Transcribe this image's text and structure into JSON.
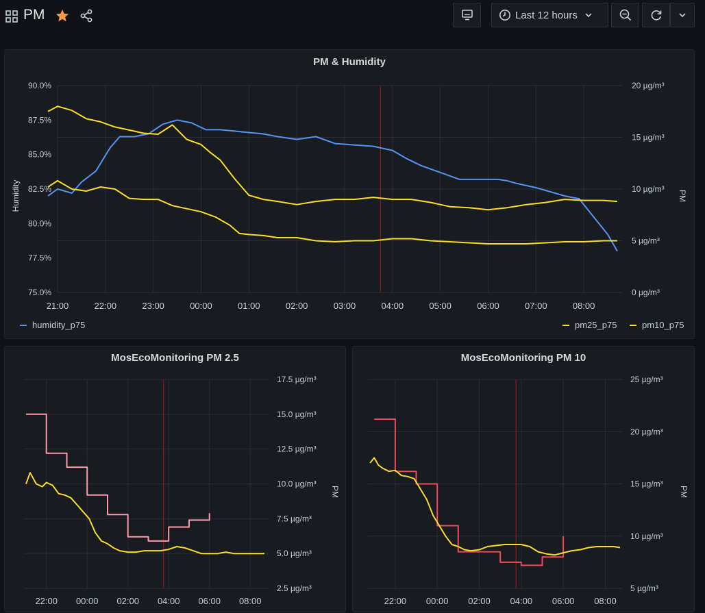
{
  "header": {
    "title": "PM",
    "time_range": "Last 12 hours",
    "icons": {
      "apps": "apps-icon",
      "star": "star-icon",
      "share": "share-icon",
      "tv": "tv-icon",
      "clock": "clock-icon",
      "chevron": "chevron-down-icon",
      "zoom": "zoom-out-icon",
      "refresh": "refresh-icon"
    },
    "star_color": "#f2994a"
  },
  "colors": {
    "humidity": "#5794f2",
    "pm_yellow": "#fade2a",
    "pm_pink": "#ff9aa8",
    "pm_red": "#f2495c",
    "now_marker": "#8b1a1a",
    "grid": "#2a2d33",
    "tick_text": "#c7d0d9"
  },
  "panels": [
    {
      "title": "PM & Humidity",
      "chart_data": {
        "type": "line",
        "x_ticks": [
          "21:00",
          "22:00",
          "23:00",
          "00:00",
          "01:00",
          "02:00",
          "03:00",
          "04:00",
          "05:00",
          "06:00",
          "07:00",
          "08:00"
        ],
        "x_range": [
          0,
          11.8
        ],
        "ylabel_left": "Humidity",
        "ylabel_right": "PM",
        "y_left_ticks": [
          "75.0%",
          "77.5%",
          "80.0%",
          "82.5%",
          "85.0%",
          "87.5%",
          "90.0%"
        ],
        "y_left_range": [
          75,
          90
        ],
        "y_right_ticks": [
          "0 µg/m³",
          "5 µg/m³",
          "10 µg/m³",
          "15 µg/m³",
          "20 µg/m³"
        ],
        "y_right_range": [
          0,
          20
        ],
        "now_marker_x": 6.75,
        "grid": true,
        "legend_placement": "bottom",
        "series": [
          {
            "name": "humidity_p75",
            "axis": "left",
            "color": "#5794f2",
            "x": [
              -0.2,
              0,
              0.3,
              0.5,
              0.8,
              1.1,
              1.3,
              1.6,
              1.9,
              2.2,
              2.5,
              2.8,
              3.1,
              3.4,
              3.7,
              4.0,
              4.3,
              4.6,
              5.0,
              5.4,
              5.8,
              6.2,
              6.6,
              7.0,
              7.3,
              7.6,
              8.0,
              8.4,
              8.8,
              9.2,
              9.4,
              9.6,
              10.0,
              10.3,
              10.6,
              10.9,
              11.2,
              11.5,
              11.7
            ],
            "y": [
              82.0,
              82.5,
              82.2,
              83.0,
              83.8,
              85.5,
              86.3,
              86.3,
              86.5,
              87.2,
              87.5,
              87.3,
              86.8,
              86.8,
              86.7,
              86.6,
              86.5,
              86.3,
              86.1,
              86.3,
              85.8,
              85.7,
              85.6,
              85.3,
              84.7,
              84.2,
              83.7,
              83.2,
              83.2,
              83.2,
              83.1,
              82.9,
              82.6,
              82.3,
              82.0,
              81.8,
              80.5,
              79.2,
              78.0
            ]
          },
          {
            "name": "pm25_p75",
            "axis": "right",
            "color": "#fade2a",
            "x": [
              -0.2,
              0,
              0.3,
              0.6,
              0.9,
              1.2,
              1.5,
              1.8,
              2.1,
              2.4,
              2.7,
              3.0,
              3.3,
              3.6,
              3.8,
              4.0,
              4.3,
              4.6,
              5.0,
              5.4,
              5.8,
              6.2,
              6.6,
              7.0,
              7.4,
              7.8,
              8.2,
              8.6,
              9.0,
              9.4,
              9.8,
              10.2,
              10.6,
              11.0,
              11.4,
              11.7
            ],
            "y": [
              10.2,
              10.8,
              10.0,
              9.8,
              10.2,
              10.0,
              9.1,
              9.0,
              9.0,
              8.4,
              8.1,
              7.8,
              7.3,
              6.5,
              5.7,
              5.6,
              5.5,
              5.3,
              5.3,
              5.0,
              4.9,
              5.0,
              5.0,
              5.2,
              5.2,
              5.0,
              4.9,
              4.8,
              4.7,
              4.7,
              4.7,
              4.8,
              4.9,
              4.9,
              5.0,
              5.0
            ]
          },
          {
            "name": "pm10_p75",
            "axis": "right",
            "color": "#fade2a",
            "x": [
              -0.2,
              0,
              0.3,
              0.6,
              0.9,
              1.2,
              1.5,
              1.8,
              2.1,
              2.4,
              2.7,
              3.0,
              3.2,
              3.4,
              3.7,
              4.0,
              4.3,
              4.6,
              5.0,
              5.4,
              5.8,
              6.2,
              6.6,
              7.0,
              7.4,
              7.8,
              8.2,
              8.6,
              9.0,
              9.4,
              9.8,
              10.2,
              10.6,
              11.0,
              11.4,
              11.7
            ],
            "y": [
              17.5,
              18.0,
              17.6,
              16.8,
              16.5,
              16.0,
              15.7,
              15.4,
              15.3,
              16.2,
              14.8,
              14.3,
              13.5,
              12.8,
              11.0,
              9.4,
              9.0,
              8.8,
              8.5,
              8.8,
              9.0,
              9.0,
              9.2,
              9.0,
              9.0,
              8.7,
              8.3,
              8.2,
              8.0,
              8.2,
              8.5,
              8.7,
              9.0,
              8.9,
              8.9,
              8.8
            ]
          }
        ]
      }
    },
    {
      "title": "MosEcoMonitoring PM 2.5",
      "chart_data": {
        "type": "line",
        "x_ticks": [
          "22:00",
          "00:00",
          "02:00",
          "04:00",
          "06:00",
          "08:00"
        ],
        "x_range": [
          -1.1,
          10.9
        ],
        "ylabel_right": "PM",
        "y_right_ticks": [
          "2.5 µg/m³",
          "5.0 µg/m³",
          "7.5 µg/m³",
          "10.0 µg/m³",
          "12.5 µg/m³",
          "15.0 µg/m³",
          "17.5 µg/m³"
        ],
        "y_range": [
          2.5,
          17.5
        ],
        "now_marker_x": 5.75,
        "grid": true,
        "series": [
          {
            "step": true,
            "color": "#ff9aa8",
            "x": [
              -1.0,
              0,
              1,
              2,
              3,
              4,
              5,
              6,
              7,
              8
            ],
            "y": [
              15.0,
              12.2,
              11.2,
              9.2,
              7.8,
              6.2,
              5.9,
              6.9,
              7.4,
              7.9
            ]
          },
          {
            "step": false,
            "color": "#fade2a",
            "x": [
              -1.0,
              -0.8,
              -0.5,
              -0.2,
              0,
              0.3,
              0.6,
              0.9,
              1.2,
              1.5,
              1.8,
              2.1,
              2.4,
              2.7,
              3.0,
              3.3,
              3.6,
              4.0,
              4.4,
              4.8,
              5.2,
              5.6,
              6.0,
              6.4,
              6.8,
              7.2,
              7.6,
              8.0,
              8.4,
              8.8,
              9.2,
              9.6,
              10.0,
              10.4,
              10.7
            ],
            "y": [
              10.0,
              10.8,
              10.0,
              9.8,
              10.1,
              9.9,
              9.3,
              9.2,
              9.0,
              8.5,
              8.0,
              7.5,
              6.5,
              5.9,
              5.7,
              5.4,
              5.2,
              5.1,
              5.1,
              5.2,
              5.2,
              5.2,
              5.3,
              5.5,
              5.4,
              5.2,
              5.0,
              5.0,
              5.0,
              5.1,
              5.0,
              5.0,
              5.0,
              5.0,
              5.0
            ]
          }
        ]
      }
    },
    {
      "title": "MosEcoMonitoring PM 10",
      "chart_data": {
        "type": "line",
        "x_ticks": [
          "22:00",
          "00:00",
          "02:00",
          "04:00",
          "06:00",
          "08:00"
        ],
        "x_range": [
          -1.3,
          10.8
        ],
        "ylabel_right": "PM",
        "y_right_ticks": [
          "5 µg/m³",
          "10 µg/m³",
          "15 µg/m³",
          "20 µg/m³",
          "25 µg/m³"
        ],
        "y_range": [
          5,
          25
        ],
        "now_marker_x": 5.75,
        "grid": true,
        "series": [
          {
            "step": true,
            "color": "#f2495c",
            "x": [
              -1.0,
              0,
              1,
              2,
              3,
              4,
              5,
              6,
              7,
              8
            ],
            "y": [
              21.2,
              16.2,
              15.0,
              11.0,
              8.5,
              8.5,
              7.5,
              7.2,
              8.0,
              10.0
            ]
          },
          {
            "step": false,
            "color": "#fade2a",
            "x": [
              -1.2,
              -1.0,
              -0.8,
              -0.6,
              -0.3,
              0,
              0.3,
              0.6,
              0.9,
              1.2,
              1.5,
              1.8,
              2.1,
              2.4,
              2.7,
              3.0,
              3.3,
              3.6,
              4.0,
              4.4,
              4.8,
              5.2,
              5.6,
              6.0,
              6.4,
              6.8,
              7.2,
              7.6,
              8.0,
              8.4,
              8.8,
              9.2,
              9.6,
              10.0,
              10.4,
              10.7
            ],
            "y": [
              17.0,
              17.5,
              16.8,
              16.5,
              16.2,
              16.3,
              15.8,
              15.7,
              15.5,
              14.5,
              13.5,
              12.0,
              11.0,
              10.0,
              9.2,
              9.0,
              8.7,
              8.6,
              8.7,
              9.0,
              9.1,
              9.2,
              9.2,
              9.2,
              9.0,
              8.5,
              8.3,
              8.2,
              8.4,
              8.6,
              8.7,
              8.9,
              9.0,
              9.0,
              9.0,
              8.9
            ]
          }
        ]
      }
    }
  ],
  "legend": {
    "humidity": "humidity_p75",
    "pm25": "pm25_p75",
    "pm10": "pm10_p75"
  }
}
